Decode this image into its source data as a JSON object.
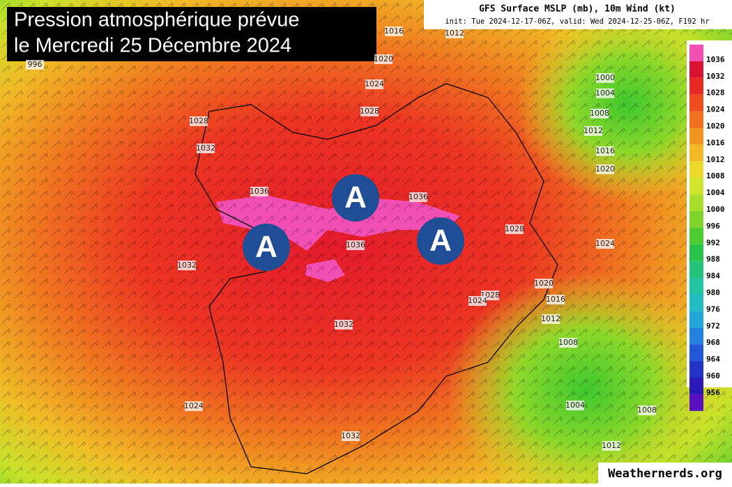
{
  "title": {
    "line1": "Pression atmosphérique prévue",
    "line2": "le Mercredi 25 Décembre 2024"
  },
  "header": {
    "title": "GFS Surface MSLP (mb), 10m Wind (kt)",
    "subtitle": "init: Tue 2024-12-17-06Z, valid: Wed 2024-12-25-06Z, F192 hr"
  },
  "legend": {
    "colors": [
      "#f24fb4",
      "#dc1030",
      "#ea2a22",
      "#ee4c1c",
      "#f07020",
      "#f29422",
      "#f2b826",
      "#eed82a",
      "#d0e42a",
      "#a8de2a",
      "#7ed42a",
      "#4ccc30",
      "#28c24a",
      "#22c278",
      "#22c4a2",
      "#22bcc4",
      "#22a6d8",
      "#2280e0",
      "#2258d8",
      "#2234c8",
      "#2a18b8",
      "#5a10c0"
    ],
    "labels": [
      "1036",
      "1032",
      "1028",
      "1024",
      "1020",
      "1016",
      "1012",
      "1008",
      "1004",
      "1000",
      "996",
      "992",
      "988",
      "984",
      "980",
      "976",
      "972",
      "968",
      "964",
      "960",
      "956"
    ]
  },
  "isobars": [
    "996",
    "1016",
    "1012",
    "1020",
    "1024",
    "1028",
    "1028",
    "1032",
    "1036",
    "1036",
    "1036",
    "1032",
    "1028",
    "1024",
    "1020",
    "1016",
    "1028",
    "1024",
    "1012",
    "1008",
    "1032",
    "1024",
    "1032",
    "1004",
    "1008",
    "1012",
    "1000",
    "1004",
    "1008",
    "1012",
    "1016",
    "1020"
  ],
  "highs": [
    "A",
    "A",
    "A"
  ],
  "watermark": "Weathernerds.org"
}
